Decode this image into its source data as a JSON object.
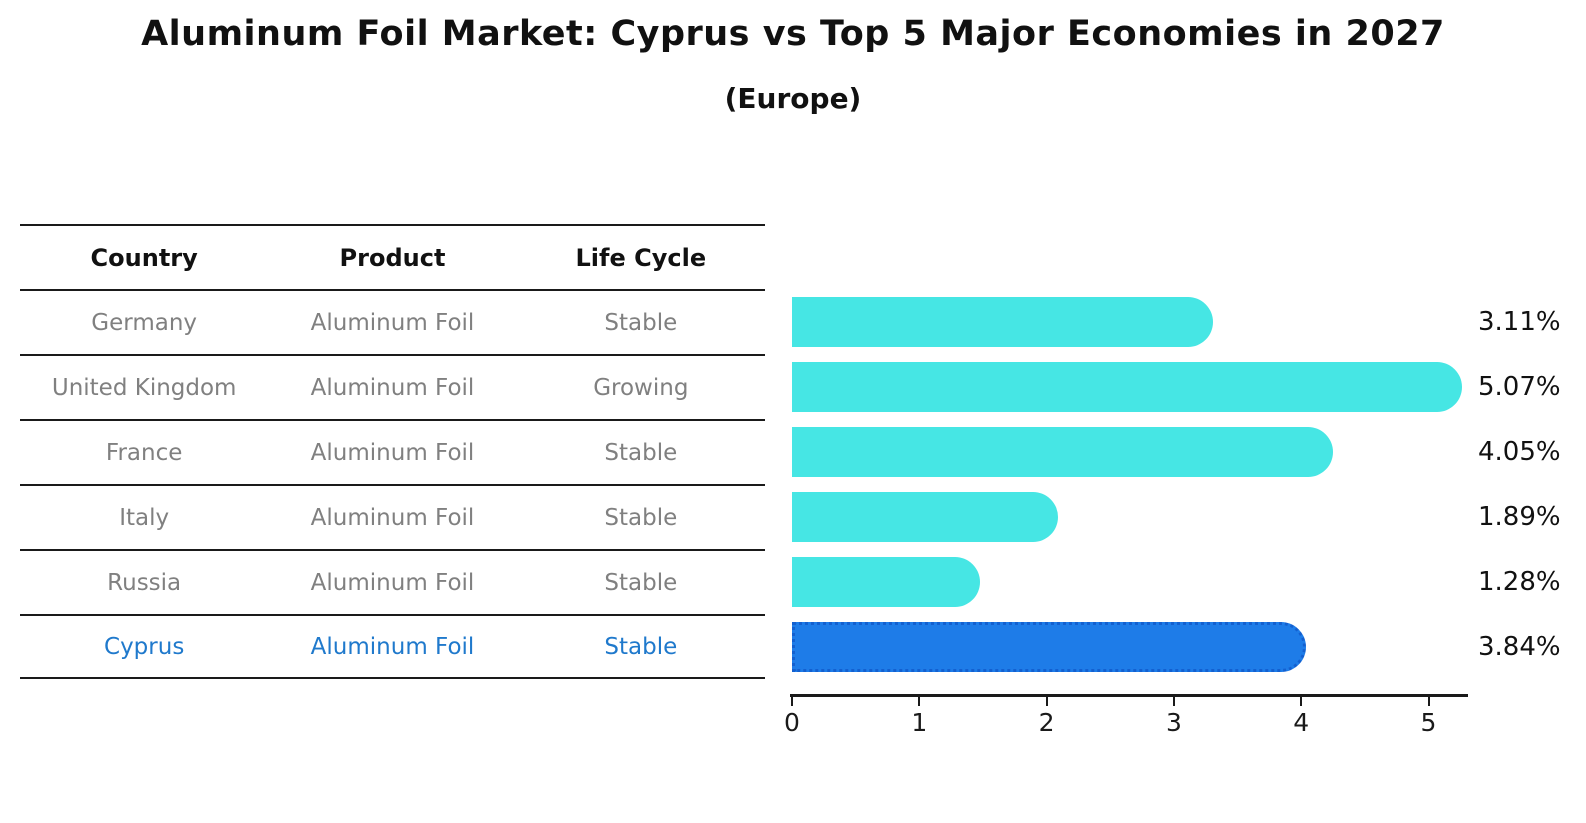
{
  "title": "Aluminum Foil Market: Cyprus vs Top 5 Major Economies in 2027",
  "subtitle": "(Europe)",
  "table": {
    "headers": {
      "country": "Country",
      "product": "Product",
      "life_cycle": "Life Cycle"
    },
    "rows": [
      {
        "country": "Germany",
        "product": "Aluminum Foil",
        "life_cycle": "Stable",
        "highlighted": false
      },
      {
        "country": "United Kingdom",
        "product": "Aluminum Foil",
        "life_cycle": "Growing",
        "highlighted": false
      },
      {
        "country": "France",
        "product": "Aluminum Foil",
        "life_cycle": "Stable",
        "highlighted": false
      },
      {
        "country": "Italy",
        "product": "Aluminum Foil",
        "life_cycle": "Stable",
        "highlighted": false
      },
      {
        "country": "Russia",
        "product": "Aluminum Foil",
        "life_cycle": "Stable",
        "highlighted": false
      },
      {
        "country": "Cyprus",
        "product": "Aluminum Foil",
        "life_cycle": "Stable",
        "highlighted": true
      }
    ]
  },
  "chart_data": {
    "type": "bar",
    "orientation": "horizontal",
    "title": "Aluminum Foil Market: Cyprus vs Top 5 Major Economies in 2027",
    "subtitle": "(Europe)",
    "categories": [
      "Germany",
      "United Kingdom",
      "France",
      "Italy",
      "Russia",
      "Cyprus"
    ],
    "values": [
      3.11,
      5.07,
      4.05,
      1.89,
      1.28,
      3.84
    ],
    "value_labels": [
      "3.11%",
      "5.07%",
      "4.05%",
      "1.89%",
      "1.28%",
      "3.84%"
    ],
    "x_ticks": [
      "0",
      "1",
      "2",
      "3",
      "4",
      "5"
    ],
    "xlim": [
      0,
      5.33
    ],
    "grid": false,
    "legend": false,
    "highlight_category": "Cyprus",
    "colors": {
      "bar": "#46e6e4",
      "highlight_bar": "#1e7ce8",
      "highlight_border": "#1360d0",
      "highlight_text": "#1f79cc",
      "table_text": "#808080",
      "heading_text": "#111111",
      "line": "#1a1a1a"
    }
  }
}
